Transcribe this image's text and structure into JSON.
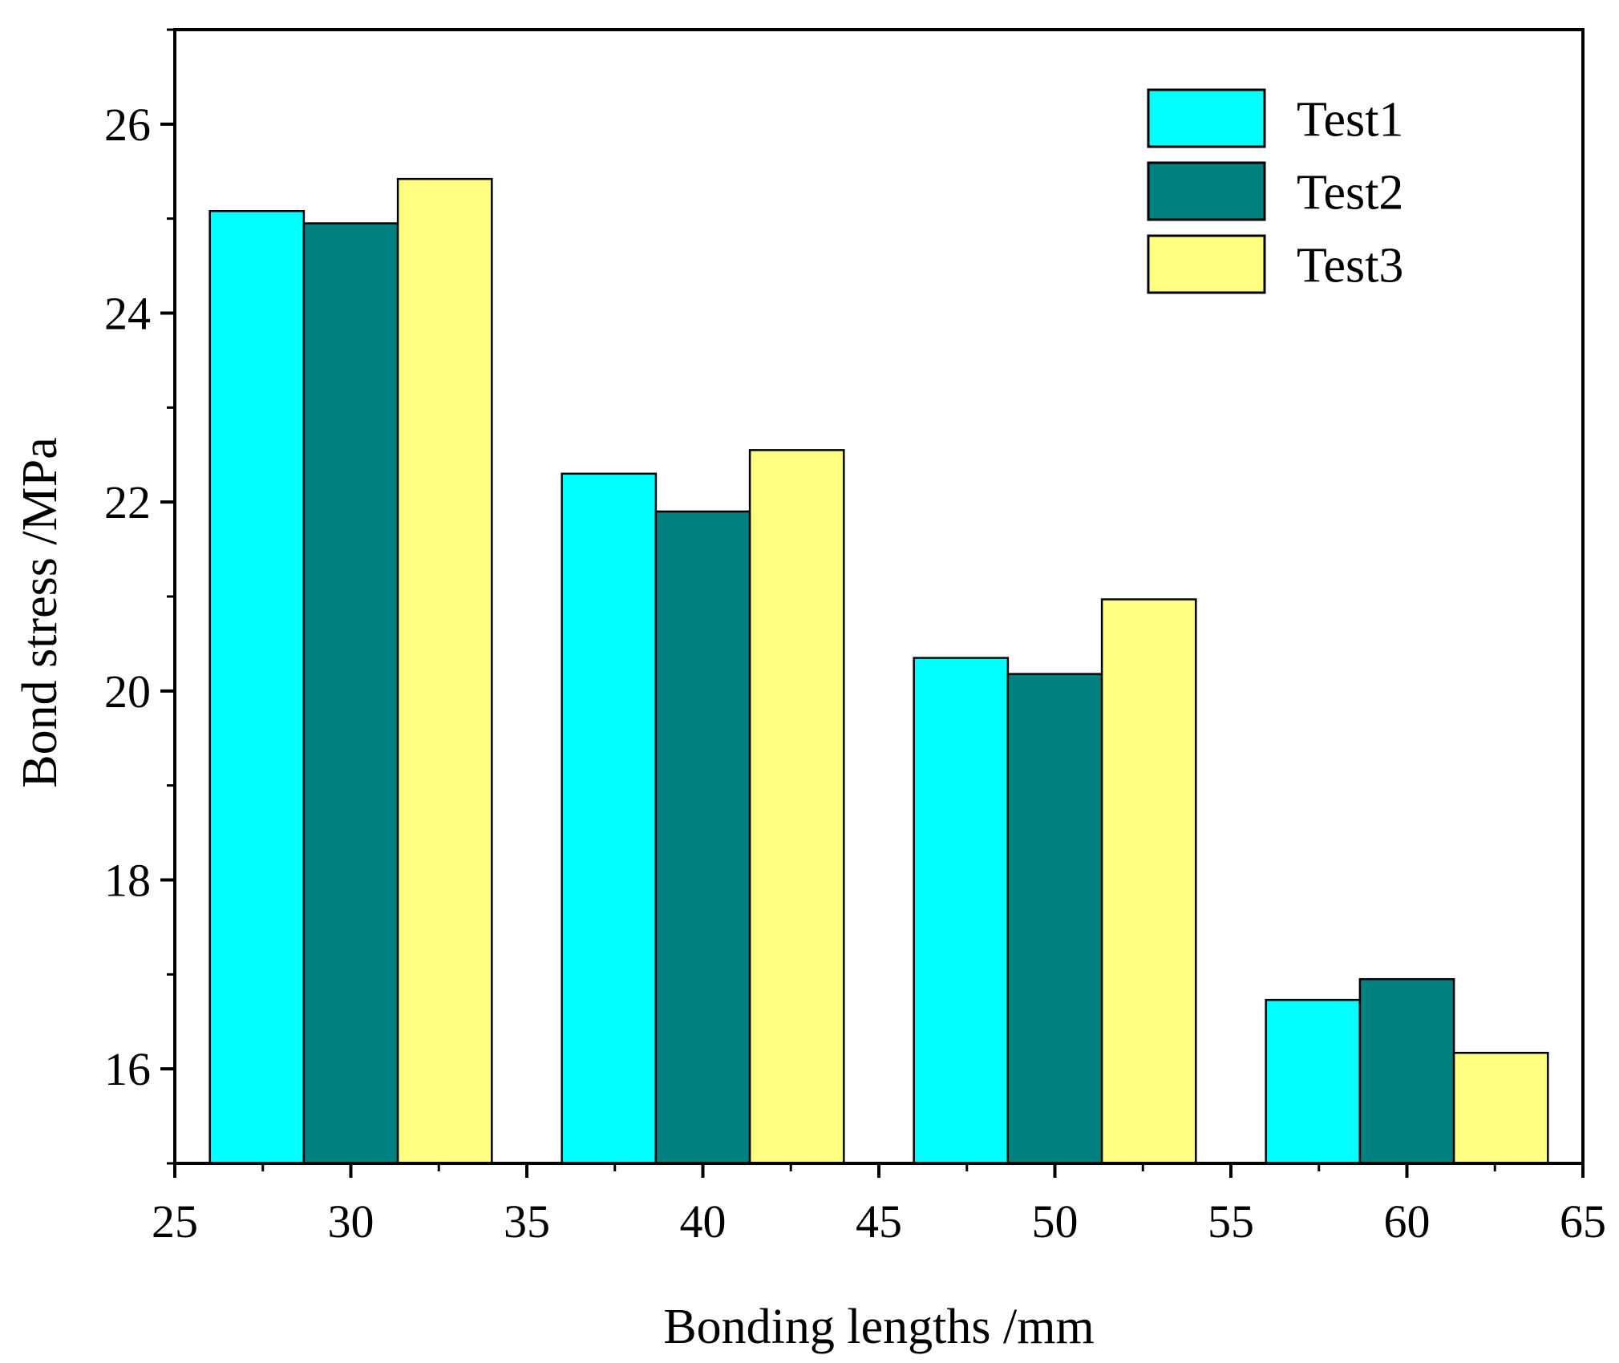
{
  "chart_data": {
    "type": "bar",
    "xlabel": "Bonding lengths /mm",
    "ylabel": "Bond stress /MPa",
    "xlim": [
      25,
      65
    ],
    "ylim": [
      15,
      27
    ],
    "x_ticks": [
      25,
      30,
      35,
      40,
      45,
      50,
      55,
      60,
      65
    ],
    "x_tick_labels": [
      "25",
      "30",
      "35",
      "40",
      "45",
      "50",
      "55",
      "60",
      "65"
    ],
    "y_ticks": [
      16,
      18,
      20,
      22,
      24,
      26
    ],
    "y_tick_labels": [
      "16",
      "18",
      "20",
      "22",
      "24",
      "26"
    ],
    "groups": [
      30,
      40,
      50,
      60
    ],
    "bar_width": 2.67,
    "legend_position": "top-right",
    "series": [
      {
        "name": "Test1",
        "color": "#00FFFF",
        "values": [
          25.08,
          22.3,
          20.35,
          16.73
        ]
      },
      {
        "name": "Test2",
        "color": "#008080",
        "values": [
          24.95,
          21.9,
          20.18,
          16.95
        ]
      },
      {
        "name": "Test3",
        "color": "#FFFF80",
        "values": [
          25.42,
          22.55,
          20.97,
          16.17
        ]
      }
    ]
  }
}
